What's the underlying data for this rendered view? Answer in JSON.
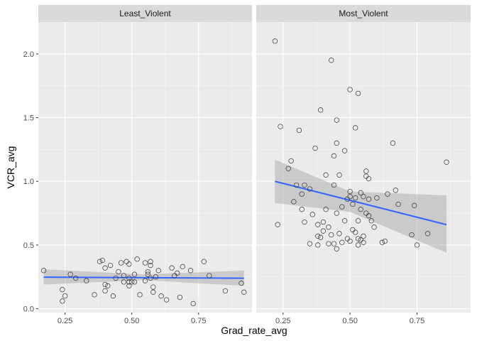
{
  "chart_data": {
    "type": "scatter",
    "xlabel": "Grad_rate_avg",
    "ylabel": "VCR_avg",
    "xlim": [
      0.15,
      0.95
    ],
    "ylim": [
      -0.03,
      2.25
    ],
    "x_ticks": [
      0.25,
      0.5,
      0.75
    ],
    "x_tick_labels": [
      "0.25",
      "0.50",
      "0.75"
    ],
    "y_ticks": [
      0,
      0.5,
      1,
      1.5,
      2
    ],
    "y_tick_labels": [
      "0.0",
      "0.5",
      "1.0",
      "1.5",
      "2.0"
    ],
    "grid": true,
    "colors": {
      "panel_bg": "#ebebeb",
      "strip_bg": "#d9d9d9",
      "grid_major": "#ffffff",
      "point_stroke": "#333333",
      "fit_line": "#3366ff",
      "ribbon": "#999999"
    },
    "panels": [
      {
        "title": "Least_Violent",
        "points": [
          [
            0.17,
            0.3
          ],
          [
            0.24,
            0.15
          ],
          [
            0.24,
            0.06
          ],
          [
            0.25,
            0.1
          ],
          [
            0.27,
            0.27
          ],
          [
            0.29,
            0.24
          ],
          [
            0.33,
            0.22
          ],
          [
            0.36,
            0.11
          ],
          [
            0.38,
            0.37
          ],
          [
            0.39,
            0.38
          ],
          [
            0.4,
            0.32
          ],
          [
            0.4,
            0.19
          ],
          [
            0.4,
            0.14
          ],
          [
            0.41,
            0.18
          ],
          [
            0.42,
            0.34
          ],
          [
            0.43,
            0.1
          ],
          [
            0.44,
            0.24
          ],
          [
            0.45,
            0.29
          ],
          [
            0.46,
            0.36
          ],
          [
            0.47,
            0.26
          ],
          [
            0.47,
            0.21
          ],
          [
            0.48,
            0.37
          ],
          [
            0.49,
            0.35
          ],
          [
            0.49,
            0.24
          ],
          [
            0.49,
            0.18
          ],
          [
            0.49,
            0.21
          ],
          [
            0.5,
            0.21
          ],
          [
            0.51,
            0.21
          ],
          [
            0.51,
            0.27
          ],
          [
            0.52,
            0.39
          ],
          [
            0.53,
            0.11
          ],
          [
            0.55,
            0.36
          ],
          [
            0.55,
            0.22
          ],
          [
            0.56,
            0.29
          ],
          [
            0.56,
            0.27
          ],
          [
            0.57,
            0.34
          ],
          [
            0.57,
            0.37
          ],
          [
            0.57,
            0.24
          ],
          [
            0.58,
            0.13
          ],
          [
            0.58,
            0.17
          ],
          [
            0.59,
            0.25
          ],
          [
            0.6,
            0.3
          ],
          [
            0.61,
            0.1
          ],
          [
            0.63,
            0.07
          ],
          [
            0.65,
            0.32
          ],
          [
            0.66,
            0.26
          ],
          [
            0.67,
            0.28
          ],
          [
            0.68,
            0.09
          ],
          [
            0.69,
            0.33
          ],
          [
            0.72,
            0.3
          ],
          [
            0.73,
            0.04
          ],
          [
            0.77,
            0.37
          ],
          [
            0.79,
            0.26
          ],
          [
            0.85,
            0.14
          ],
          [
            0.91,
            0.2
          ],
          [
            0.92,
            0.13
          ]
        ],
        "fit": {
          "x": [
            0.17,
            0.92
          ],
          "y": [
            0.248,
            0.24
          ]
        },
        "ribbon": {
          "x": [
            0.17,
            0.545,
            0.92
          ],
          "upper": [
            0.31,
            0.27,
            0.3
          ],
          "lower": [
            0.19,
            0.225,
            0.18
          ]
        }
      },
      {
        "title": "Most_Violent",
        "points": [
          [
            0.22,
            2.1
          ],
          [
            0.23,
            0.66
          ],
          [
            0.24,
            1.43
          ],
          [
            0.27,
            1.1
          ],
          [
            0.28,
            1.16
          ],
          [
            0.29,
            0.84
          ],
          [
            0.3,
            0.97
          ],
          [
            0.31,
            1.4
          ],
          [
            0.32,
            0.78
          ],
          [
            0.32,
            0.9
          ],
          [
            0.33,
            0.68
          ],
          [
            0.33,
            0.97
          ],
          [
            0.35,
            0.94
          ],
          [
            0.35,
            0.51
          ],
          [
            0.36,
            0.74
          ],
          [
            0.37,
            1.26
          ],
          [
            0.38,
            0.57
          ],
          [
            0.38,
            0.66
          ],
          [
            0.38,
            0.5
          ],
          [
            0.39,
            1.56
          ],
          [
            0.39,
            0.56
          ],
          [
            0.4,
            0.68
          ],
          [
            0.4,
            0.61
          ],
          [
            0.41,
            1.05
          ],
          [
            0.41,
            0.78
          ],
          [
            0.42,
            0.64
          ],
          [
            0.42,
            0.51
          ],
          [
            0.43,
            1.95
          ],
          [
            0.43,
            0.58
          ],
          [
            0.44,
            0.97
          ],
          [
            0.44,
            0.51
          ],
          [
            0.44,
            1.2
          ],
          [
            0.45,
            1.48
          ],
          [
            0.45,
            1.3
          ],
          [
            0.45,
            0.75
          ],
          [
            0.45,
            0.47
          ],
          [
            0.46,
            1.05
          ],
          [
            0.46,
            0.59
          ],
          [
            0.47,
            0.52
          ],
          [
            0.47,
            0.8
          ],
          [
            0.48,
            1.24
          ],
          [
            0.48,
            0.69
          ],
          [
            0.49,
            0.86
          ],
          [
            0.49,
            0.55
          ],
          [
            0.5,
            1.72
          ],
          [
            0.5,
            0.92
          ],
          [
            0.5,
            0.88
          ],
          [
            0.5,
            0.53
          ],
          [
            0.51,
            0.82
          ],
          [
            0.51,
            0.62
          ],
          [
            0.52,
            1.42
          ],
          [
            0.52,
            0.87
          ],
          [
            0.52,
            0.6
          ],
          [
            0.53,
            1.69
          ],
          [
            0.53,
            0.69
          ],
          [
            0.53,
            0.55
          ],
          [
            0.53,
            0.5
          ],
          [
            0.54,
            0.91
          ],
          [
            0.54,
            0.78
          ],
          [
            0.54,
            0.54
          ],
          [
            0.55,
            0.88
          ],
          [
            0.55,
            0.57
          ],
          [
            0.55,
            0.52
          ],
          [
            0.56,
            1.08
          ],
          [
            0.56,
            1.04
          ],
          [
            0.56,
            0.75
          ],
          [
            0.57,
            1.02
          ],
          [
            0.57,
            0.86
          ],
          [
            0.57,
            0.73
          ],
          [
            0.58,
            0.69
          ],
          [
            0.59,
            0.64
          ],
          [
            0.6,
            0.87
          ],
          [
            0.62,
            0.52
          ],
          [
            0.63,
            0.53
          ],
          [
            0.64,
            0.9
          ],
          [
            0.66,
            1.3
          ],
          [
            0.67,
            0.93
          ],
          [
            0.68,
            0.82
          ],
          [
            0.73,
            0.58
          ],
          [
            0.74,
            0.81
          ],
          [
            0.75,
            0.5
          ],
          [
            0.79,
            0.59
          ],
          [
            0.86,
            1.15
          ]
        ],
        "fit": {
          "x": [
            0.22,
            0.86
          ],
          "y": [
            1.0,
            0.66
          ]
        },
        "ribbon": {
          "x": [
            0.22,
            0.5,
            0.86
          ],
          "upper": [
            1.17,
            0.92,
            0.89
          ],
          "lower": [
            0.83,
            0.76,
            0.44
          ]
        }
      }
    ]
  }
}
